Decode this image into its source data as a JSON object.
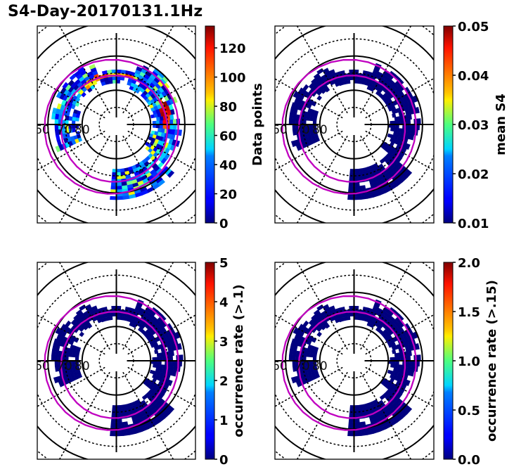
{
  "title": "S4-Day-20170131.1Hz",
  "chart_data": [
    {
      "type": "heatmap",
      "projection": "polar",
      "panel": "top-left",
      "latitude_labels": [
        "60",
        "70",
        "80"
      ],
      "colormap": "jet",
      "colorbar": {
        "label": "Data points",
        "range": [
          0,
          135
        ],
        "ticks": [
          "0",
          "20",
          "40",
          "60",
          "80",
          "100",
          "120"
        ],
        "tick_values": [
          0,
          20,
          40,
          60,
          80,
          100,
          120
        ]
      },
      "description": "Data-point counts along a ring between ~65-80 deg latitude; highest (red) on the dusk/eastern side, mostly low (blue) elsewhere",
      "oval_curves": 2,
      "oval_color": "#c000c0"
    },
    {
      "type": "heatmap",
      "projection": "polar",
      "panel": "top-right",
      "latitude_labels": [
        "60",
        "70",
        "80"
      ],
      "colormap": "jet",
      "colorbar": {
        "label": "mean S4",
        "range": [
          0.01,
          0.05
        ],
        "ticks": [
          "0.01",
          "0.02",
          "0.03",
          "0.04",
          "0.05"
        ],
        "tick_values": [
          0.01,
          0.02,
          0.03,
          0.04,
          0.05
        ]
      },
      "description": "Mean S4 uniformly near minimum (dark blue) over covered ring",
      "oval_curves": 2,
      "oval_color": "#c000c0"
    },
    {
      "type": "heatmap",
      "projection": "polar",
      "panel": "bottom-left",
      "latitude_labels": [
        "60",
        "70",
        "80"
      ],
      "colormap": "jet",
      "colorbar": {
        "label": "occurrence rate (>.1)",
        "range": [
          0,
          5
        ],
        "ticks": [
          "0",
          "1",
          "2",
          "3",
          "4",
          "5"
        ],
        "tick_values": [
          0,
          1,
          2,
          3,
          4,
          5
        ]
      },
      "description": "Occurrence rate uniformly ~0 (dark blue) over covered ring",
      "oval_curves": 2,
      "oval_color": "#c000c0"
    },
    {
      "type": "heatmap",
      "projection": "polar",
      "panel": "bottom-right",
      "latitude_labels": [
        "60",
        "70",
        "80"
      ],
      "colormap": "jet",
      "colorbar": {
        "label": "occurrence rate (>.15)",
        "range": [
          0,
          2
        ],
        "ticks": [
          "0.0",
          "0.5",
          "1.0",
          "1.5",
          "2.0"
        ],
        "tick_values": [
          0,
          0.5,
          1.0,
          1.5,
          2.0
        ]
      },
      "description": "Occurrence rate uniformly ~0 (dark blue) over covered ring",
      "oval_curves": 2,
      "oval_color": "#c000c0"
    }
  ]
}
